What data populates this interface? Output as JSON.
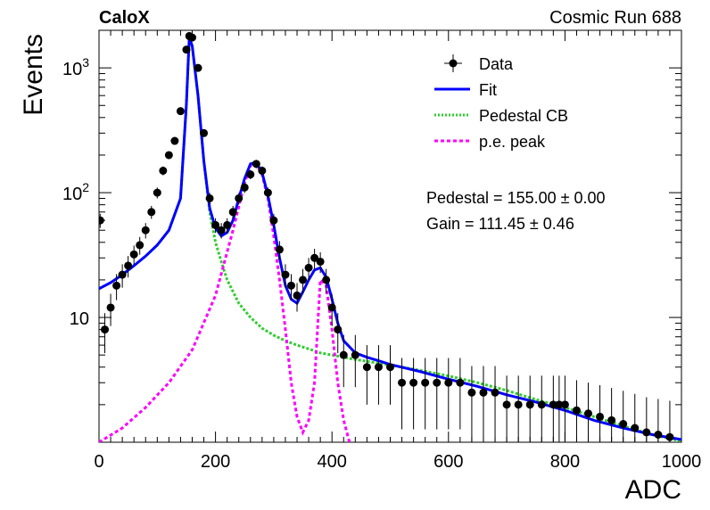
{
  "header": {
    "left_label": "CaloX",
    "right_label": "Cosmic Run 688"
  },
  "chart_data": {
    "type": "scatter",
    "xlabel": "ADC",
    "ylabel": "Events",
    "xlim": [
      0,
      1000
    ],
    "ylim": [
      1,
      2000
    ],
    "yscale": "log",
    "x_ticks": [
      0,
      200,
      400,
      600,
      800,
      1000
    ],
    "y_tick_labels": [
      {
        "value": 10,
        "base": "10",
        "exp": ""
      },
      {
        "value": 100,
        "base": "10",
        "exp": "2"
      },
      {
        "value": 1000,
        "base": "10",
        "exp": "3"
      }
    ],
    "legend": {
      "position": "top-right",
      "entries": [
        {
          "label": "Data",
          "style": "marker",
          "color": "#000000"
        },
        {
          "label": "Fit",
          "style": "solid",
          "color": "#0000ff"
        },
        {
          "label": "Pedestal CB",
          "style": "dotted",
          "color": "#33cc33"
        },
        {
          "label": "p.e. peak",
          "style": "dashed",
          "color": "#ff00ff"
        }
      ]
    },
    "annotations": {
      "pedestal": "Pedestal = 155.00 ± 0.00",
      "gain": "Gain = 111.45 ± 0.46"
    },
    "data_points": {
      "x": [
        2,
        10,
        20,
        30,
        40,
        50,
        60,
        70,
        80,
        90,
        100,
        110,
        120,
        130,
        140,
        150,
        155,
        160,
        170,
        180,
        190,
        200,
        210,
        220,
        230,
        240,
        250,
        260,
        270,
        280,
        290,
        300,
        310,
        320,
        330,
        340,
        350,
        360,
        370,
        380,
        390,
        400,
        410,
        420,
        440,
        460,
        480,
        500,
        520,
        540,
        560,
        580,
        600,
        620,
        640,
        660,
        680,
        700,
        720,
        740,
        760,
        780,
        790,
        800,
        820,
        840,
        860,
        880,
        900,
        920,
        940,
        960,
        980
      ],
      "y": [
        60,
        8,
        12,
        18,
        22,
        26,
        32,
        38,
        50,
        70,
        100,
        150,
        200,
        260,
        450,
        1400,
        1800,
        1750,
        1000,
        300,
        90,
        55,
        50,
        55,
        70,
        90,
        110,
        140,
        170,
        150,
        100,
        60,
        35,
        22,
        18,
        15,
        20,
        25,
        30,
        28,
        20,
        12,
        8,
        5,
        5,
        4,
        4,
        4,
        3,
        3,
        3,
        3,
        3,
        3,
        2.5,
        2.5,
        2.5,
        2,
        2,
        2,
        2,
        2,
        2,
        2,
        1.8,
        1.7,
        1.6,
        1.5,
        1.4,
        1.3,
        1.2,
        1.15,
        1.1
      ]
    },
    "series": [
      {
        "name": "Fit",
        "x": [
          0,
          20,
          40,
          60,
          80,
          100,
          120,
          140,
          150,
          155,
          160,
          170,
          180,
          190,
          200,
          210,
          220,
          230,
          240,
          250,
          260,
          270,
          280,
          290,
          300,
          310,
          320,
          330,
          340,
          350,
          360,
          370,
          380,
          390,
          400,
          410,
          420,
          440,
          460,
          480,
          500,
          550,
          600,
          650,
          700,
          750,
          800,
          850,
          900,
          950,
          1000
        ],
        "y": [
          17,
          19,
          22,
          26,
          31,
          38,
          50,
          90,
          500,
          1750,
          1500,
          600,
          180,
          75,
          52,
          45,
          48,
          60,
          90,
          130,
          170,
          175,
          145,
          95,
          55,
          30,
          18,
          14,
          13,
          16,
          20,
          24,
          25,
          21,
          14,
          9,
          6.5,
          5.2,
          4.8,
          4.5,
          4.2,
          3.7,
          3.2,
          2.8,
          2.4,
          2.1,
          1.8,
          1.5,
          1.3,
          1.15,
          1.05
        ]
      },
      {
        "name": "Pedestal CB",
        "x": [
          0,
          20,
          40,
          60,
          80,
          100,
          120,
          140,
          150,
          155,
          160,
          170,
          180,
          190,
          200,
          210,
          220,
          240,
          260,
          280,
          300,
          320,
          340,
          360,
          380,
          400,
          420,
          440,
          480,
          520,
          560,
          600,
          650,
          700,
          750,
          800,
          850,
          900,
          950,
          1000
        ],
        "y": [
          17,
          19,
          22,
          26,
          31,
          38,
          50,
          90,
          500,
          1750,
          1500,
          600,
          180,
          70,
          40,
          28,
          20,
          13,
          10,
          8.2,
          7.2,
          6.5,
          6,
          5.6,
          5.2,
          5,
          4.8,
          4.6,
          4.3,
          4,
          3.7,
          3.4,
          3,
          2.6,
          2.2,
          1.9,
          1.6,
          1.35,
          1.15,
          1.02
        ]
      },
      {
        "name": "p.e. peak",
        "x": [
          0,
          40,
          80,
          120,
          160,
          200,
          230,
          250,
          260,
          270,
          280,
          290,
          300,
          310,
          320,
          330,
          340,
          350,
          360,
          370,
          380,
          390,
          400,
          410,
          420,
          430
        ],
        "y": [
          1,
          1.3,
          1.9,
          3,
          5.5,
          15,
          50,
          120,
          165,
          170,
          140,
          90,
          45,
          20,
          8,
          3,
          1.6,
          1.2,
          1.5,
          3,
          20,
          18,
          8,
          3,
          1.5,
          1
        ]
      }
    ]
  }
}
